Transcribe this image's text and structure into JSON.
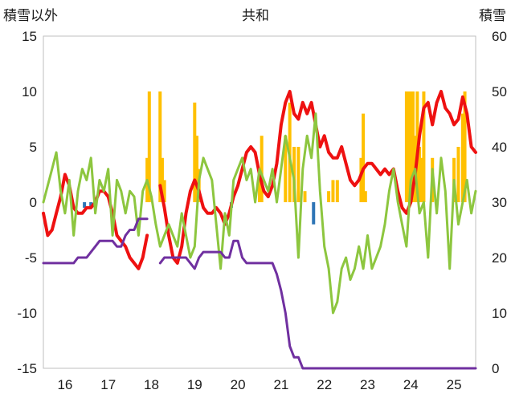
{
  "chart_data": {
    "type": "line",
    "title": "共和",
    "left_axis_label": "積雪以外",
    "right_axis_label": "積雪",
    "ylim_left": [
      -15,
      15
    ],
    "ylim_right": [
      0,
      60
    ],
    "y_ticks_left": [
      15,
      10,
      5,
      0,
      -5,
      -10,
      -15
    ],
    "y_tick_labels_left": [
      "15",
      "10",
      "5",
      "0",
      "-5",
      "-10",
      "-15"
    ],
    "y_ticks_right": [
      60,
      50,
      40,
      30,
      20,
      10,
      0
    ],
    "y_tick_labels_right": [
      "60",
      "50",
      "40",
      "30",
      "20",
      "10",
      "0"
    ],
    "xlim": [
      15.5,
      25.5
    ],
    "x_ticks": [
      16,
      17,
      18,
      19,
      20,
      21,
      22,
      23,
      24,
      25
    ],
    "x_tick_labels": [
      "16",
      "17",
      "18",
      "19",
      "20",
      "21",
      "22",
      "23",
      "24",
      "25"
    ],
    "grid": "vertical dashed",
    "colors": {
      "red": "#ee1111",
      "green": "#8dc63f",
      "purple": "#7030a0",
      "orange": "#ffc000",
      "blue": "#2e75b6"
    },
    "series": [
      {
        "key": "red",
        "axis": "left",
        "x": [
          15.5,
          15.6,
          15.7,
          15.8,
          15.9,
          16.0,
          16.1,
          16.2,
          16.3,
          16.4,
          16.5,
          16.6,
          16.7,
          16.8,
          16.9,
          17.0,
          17.1,
          17.2,
          17.3,
          17.4,
          17.5,
          17.6,
          17.7,
          17.8,
          17.9,
          18.0,
          18.1,
          18.2,
          18.3,
          18.4,
          18.5,
          18.6,
          18.7,
          18.8,
          18.9,
          19.0,
          19.1,
          19.2,
          19.3,
          19.4,
          19.5,
          19.6,
          19.7,
          19.8,
          19.9,
          20.0,
          20.1,
          20.2,
          20.3,
          20.4,
          20.5,
          20.6,
          20.7,
          20.8,
          20.9,
          21.0,
          21.1,
          21.2,
          21.3,
          21.4,
          21.5,
          21.6,
          21.7,
          21.8,
          21.9,
          22.0,
          22.1,
          22.2,
          22.3,
          22.4,
          22.5,
          22.6,
          22.7,
          22.8,
          22.9,
          23.0,
          23.1,
          23.2,
          23.3,
          23.4,
          23.5,
          23.6,
          23.7,
          23.8,
          23.9,
          24.0,
          24.1,
          24.2,
          24.3,
          24.4,
          24.5,
          24.6,
          24.7,
          24.8,
          24.9,
          25.0,
          25.1,
          25.2,
          25.3,
          25.4,
          25.5
        ],
        "y": [
          -1,
          -3,
          -2.5,
          -1,
          0.5,
          2.5,
          1.5,
          -0.5,
          -1,
          -1,
          -0.5,
          -0.5,
          0,
          1,
          1,
          0.5,
          -1,
          -3,
          -3.5,
          -4,
          -5,
          -5.5,
          -6,
          -5,
          -3,
          null,
          null,
          1.5,
          -0.5,
          -3,
          -5,
          -5.5,
          -4,
          -1,
          1,
          2,
          1,
          -0.5,
          -1,
          -1,
          -0.5,
          -1,
          -2,
          -1,
          0.5,
          1.5,
          3,
          4.5,
          5,
          4.5,
          2.5,
          1,
          0.5,
          1.5,
          3.5,
          7,
          9,
          10,
          8,
          7.5,
          9,
          8,
          9,
          7,
          5,
          6,
          4.5,
          4,
          4,
          5,
          3.5,
          2,
          1.5,
          2,
          3,
          3.5,
          3.5,
          3,
          2.5,
          3,
          2.5,
          3,
          1,
          -0.5,
          -1,
          0,
          2.5,
          6,
          8.5,
          9,
          7,
          9,
          10,
          8.5,
          8,
          7,
          7.5,
          9.5,
          8,
          5,
          4.5
        ]
      },
      {
        "key": "green",
        "axis": "left",
        "x": [
          15.5,
          15.6,
          15.7,
          15.8,
          15.9,
          16.0,
          16.1,
          16.2,
          16.3,
          16.4,
          16.5,
          16.6,
          16.7,
          16.8,
          16.9,
          17.0,
          17.1,
          17.2,
          17.3,
          17.4,
          17.5,
          17.6,
          17.7,
          17.8,
          17.9,
          18.0,
          18.1,
          18.2,
          18.3,
          18.4,
          18.5,
          18.6,
          18.7,
          18.8,
          18.9,
          19.0,
          19.1,
          19.2,
          19.3,
          19.4,
          19.5,
          19.6,
          19.7,
          19.8,
          19.9,
          20.0,
          20.1,
          20.2,
          20.3,
          20.4,
          20.5,
          20.6,
          20.7,
          20.8,
          20.9,
          21.0,
          21.1,
          21.2,
          21.3,
          21.4,
          21.5,
          21.6,
          21.7,
          21.8,
          21.9,
          22.0,
          22.1,
          22.2,
          22.3,
          22.4,
          22.5,
          22.6,
          22.7,
          22.8,
          22.9,
          23.0,
          23.1,
          23.2,
          23.3,
          23.4,
          23.5,
          23.6,
          23.7,
          23.8,
          23.9,
          24.0,
          24.1,
          24.2,
          24.3,
          24.4,
          24.5,
          24.6,
          24.7,
          24.8,
          24.9,
          25.0,
          25.1,
          25.2,
          25.3,
          25.4,
          25.5
        ],
        "y": [
          0,
          1.5,
          3,
          4.5,
          1,
          -1,
          2,
          -3,
          1,
          3,
          2,
          4,
          -1,
          2,
          1,
          3,
          -3,
          2,
          1,
          -1,
          1,
          0.5,
          -3,
          1,
          2,
          0.5,
          -2,
          -4,
          -3,
          -2,
          -3,
          -4,
          -1,
          -3,
          -5,
          -4,
          2,
          4,
          3,
          2,
          -2,
          -6,
          -1,
          -3,
          2,
          3,
          4,
          2,
          3,
          0,
          3,
          2,
          1,
          3,
          0,
          3,
          6,
          4,
          2,
          -5,
          3,
          6,
          4,
          8,
          1,
          -4,
          -6,
          -10,
          -9,
          -6,
          -5,
          -7,
          -6,
          -4,
          -6,
          -3,
          -6,
          -5,
          -4,
          -2,
          1,
          3,
          0,
          -2,
          -4,
          2,
          3,
          -1,
          0,
          -5,
          3,
          -1,
          4,
          1,
          -6,
          2,
          -2,
          0,
          2,
          -1,
          1
        ]
      },
      {
        "key": "purple",
        "axis": "right",
        "x": [
          15.5,
          15.6,
          15.7,
          15.8,
          15.9,
          16.0,
          16.1,
          16.2,
          16.3,
          16.4,
          16.5,
          16.6,
          16.7,
          16.8,
          16.9,
          17.0,
          17.1,
          17.2,
          17.3,
          17.4,
          17.5,
          17.6,
          17.7,
          17.8,
          17.9,
          18.0,
          18.1,
          18.2,
          18.3,
          18.4,
          18.5,
          18.6,
          18.7,
          18.8,
          18.9,
          19.0,
          19.1,
          19.2,
          19.3,
          19.4,
          19.5,
          19.6,
          19.7,
          19.8,
          19.9,
          20.0,
          20.1,
          20.2,
          20.3,
          20.4,
          20.5,
          20.6,
          20.7,
          20.8,
          20.9,
          21.0,
          21.1,
          21.2,
          21.3,
          21.4,
          21.5,
          21.6,
          21.7,
          21.8,
          21.9,
          22.0,
          22.1,
          22.2,
          22.3,
          22.4,
          22.5,
          22.6,
          22.7,
          22.8,
          22.9,
          23.0,
          23.1,
          23.2,
          23.3,
          23.4,
          23.5,
          23.6,
          23.7,
          23.8,
          23.9,
          24.0,
          24.1,
          24.2,
          24.3,
          24.4,
          24.5,
          24.6,
          24.7,
          24.8,
          24.9,
          25.0,
          25.1,
          25.2,
          25.3,
          25.4,
          25.5
        ],
        "y": [
          19,
          19,
          19,
          19,
          19,
          19,
          19,
          19,
          20,
          20,
          20,
          21,
          22,
          23,
          23,
          23,
          23,
          22,
          22,
          24,
          25,
          25,
          27,
          27,
          27,
          null,
          null,
          19,
          20,
          20,
          20,
          20,
          20,
          20,
          19,
          18,
          20,
          21,
          21,
          21,
          21,
          21,
          20,
          20,
          23,
          23,
          20,
          19,
          19,
          19,
          19,
          19,
          19,
          19,
          17,
          14,
          10,
          4,
          2,
          2,
          0,
          0,
          0,
          0,
          0,
          0,
          0,
          0,
          0,
          0,
          0,
          0,
          0,
          0,
          0,
          0,
          0,
          0,
          0,
          0,
          0,
          0,
          0,
          0,
          0,
          0,
          0,
          0,
          0,
          0,
          0,
          0,
          0,
          0,
          0,
          0,
          0,
          0,
          0,
          0,
          0
        ]
      },
      {
        "key": "orange",
        "axis": "left",
        "type": "bar",
        "x": [
          17.9,
          17.95,
          18.2,
          18.25,
          18.3,
          19.0,
          19.05,
          19.1,
          20.5,
          20.55,
          21.1,
          21.2,
          21.3,
          21.4,
          21.55,
          22.1,
          22.2,
          22.3,
          22.85,
          22.9,
          22.95,
          23.9,
          23.95,
          24.0,
          24.05,
          24.1,
          24.15,
          24.2,
          24.25,
          24.3,
          24.5,
          25.0,
          25.1,
          25.2,
          25.25
        ],
        "y": [
          4,
          10,
          10,
          4,
          2,
          9,
          6,
          3,
          2,
          6,
          6,
          9,
          5,
          5,
          1,
          1,
          2,
          2,
          4,
          8,
          1,
          10,
          10,
          10,
          10,
          6,
          10,
          5,
          4,
          10,
          4,
          4,
          5,
          8,
          10
        ]
      },
      {
        "key": "blue",
        "axis": "left",
        "type": "bar",
        "x": [
          16.45,
          16.6,
          16.7,
          19.85,
          21.75
        ],
        "y": [
          -0.5,
          -0.5,
          -0.3,
          -0.5,
          -2
        ]
      }
    ]
  }
}
